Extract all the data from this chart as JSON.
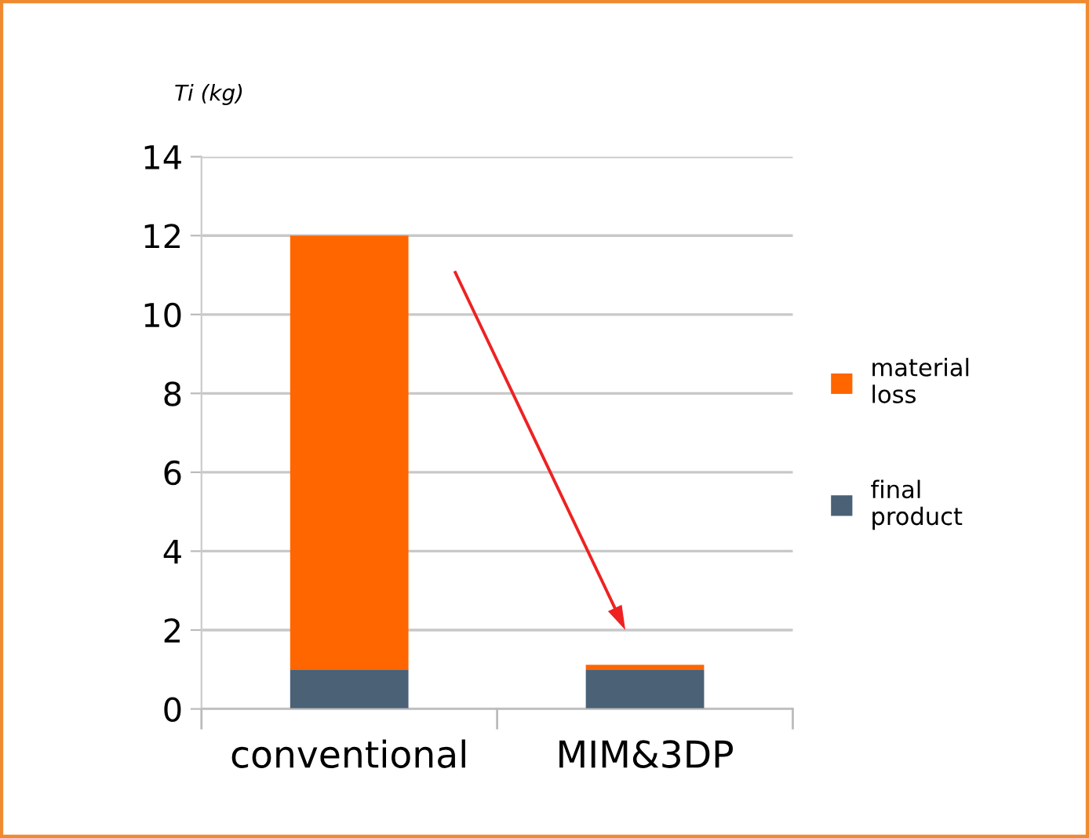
{
  "chart_data": {
    "type": "bar",
    "stacked": true,
    "ylabel": "Ti (kg)",
    "categories": [
      "conventional",
      "MIM&3DP"
    ],
    "series": [
      {
        "name": "final product",
        "color": "#4a6176",
        "values": [
          1,
          1
        ]
      },
      {
        "name": "material loss",
        "color": "#ff6600",
        "values": [
          11,
          0.12
        ]
      }
    ],
    "ylim": [
      0,
      14
    ],
    "yticks": [
      0,
      2,
      4,
      6,
      8,
      10,
      12,
      14
    ],
    "grid": "y",
    "legend": "right"
  }
}
